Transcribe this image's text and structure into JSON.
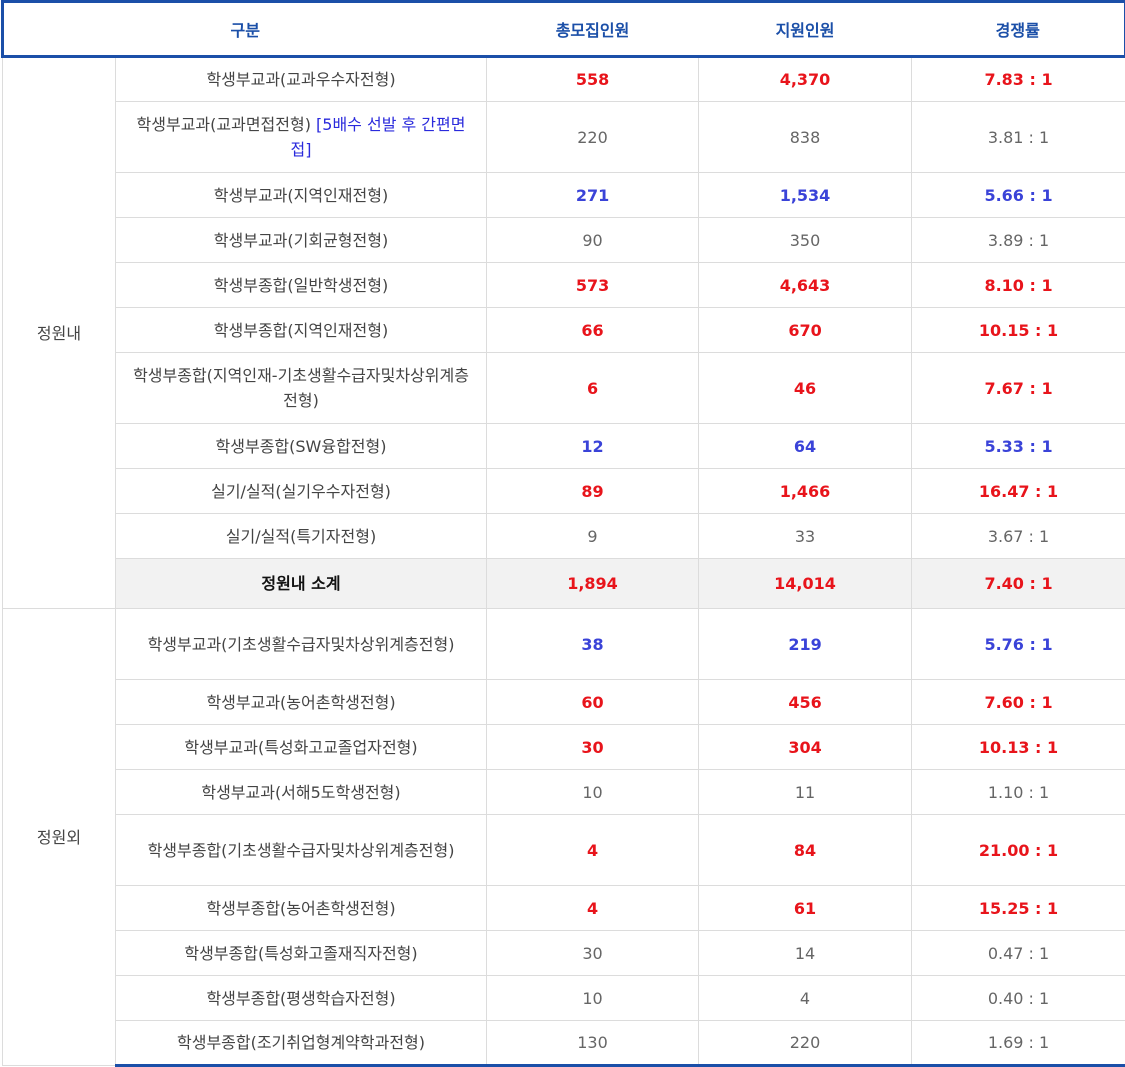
{
  "header": {
    "col1": "구분",
    "col2": "총모집인원",
    "col3": "지원인원",
    "col4": "경쟁률"
  },
  "groups": {
    "in": "정원내",
    "out": "정원외"
  },
  "colors": {
    "red": "#e8141b",
    "blue": "#3a43d8",
    "gray": "#666666",
    "header_blue": "#1b4fa8"
  },
  "rows": [
    {
      "name": "학생부교과(교과우수자전형)",
      "note": "",
      "recruit": "558",
      "applicants": "4,370",
      "ratio": "7.83 : 1",
      "style": "red"
    },
    {
      "name": "학생부교과(교과면접전형) ",
      "note": "[5배수 선발 후 간편면접]",
      "recruit": "220",
      "applicants": "838",
      "ratio": "3.81 : 1",
      "style": "gray"
    },
    {
      "name": "학생부교과(지역인재전형)",
      "note": "",
      "recruit": "271",
      "applicants": "1,534",
      "ratio": "5.66 : 1",
      "style": "blue"
    },
    {
      "name": "학생부교과(기회균형전형)",
      "note": "",
      "recruit": "90",
      "applicants": "350",
      "ratio": "3.89 : 1",
      "style": "gray"
    },
    {
      "name": "학생부종합(일반학생전형)",
      "note": "",
      "recruit": "573",
      "applicants": "4,643",
      "ratio": "8.10 : 1",
      "style": "red"
    },
    {
      "name": "학생부종합(지역인재전형)",
      "note": "",
      "recruit": "66",
      "applicants": "670",
      "ratio": "10.15 : 1",
      "style": "red"
    },
    {
      "name": "학생부종합(지역인재-기초생활수급자및차상위계층전형)",
      "note": "",
      "recruit": "6",
      "applicants": "46",
      "ratio": "7.67 : 1",
      "style": "red"
    },
    {
      "name": "학생부종합(SW융합전형)",
      "note": "",
      "recruit": "12",
      "applicants": "64",
      "ratio": "5.33 : 1",
      "style": "blue"
    },
    {
      "name": "실기/실적(실기우수자전형)",
      "note": "",
      "recruit": "89",
      "applicants": "1,466",
      "ratio": "16.47 : 1",
      "style": "red"
    },
    {
      "name": "실기/실적(특기자전형)",
      "note": "",
      "recruit": "9",
      "applicants": "33",
      "ratio": "3.67 : 1",
      "style": "gray"
    },
    {
      "name": "정원내 소계",
      "note": "",
      "recruit": "1,894",
      "applicants": "14,014",
      "ratio": "7.40 : 1",
      "style": "red"
    },
    {
      "name": "학생부교과(기초생활수급자및차상위계층전형)",
      "note": "",
      "recruit": "38",
      "applicants": "219",
      "ratio": "5.76 : 1",
      "style": "blue"
    },
    {
      "name": "학생부교과(농어촌학생전형)",
      "note": "",
      "recruit": "60",
      "applicants": "456",
      "ratio": "7.60 : 1",
      "style": "red"
    },
    {
      "name": "학생부교과(특성화고교졸업자전형)",
      "note": "",
      "recruit": "30",
      "applicants": "304",
      "ratio": "10.13 : 1",
      "style": "red"
    },
    {
      "name": "학생부교과(서해5도학생전형)",
      "note": "",
      "recruit": "10",
      "applicants": "11",
      "ratio": "1.10 : 1",
      "style": "gray"
    },
    {
      "name": "학생부종합(기초생활수급자및차상위계층전형)",
      "note": "",
      "recruit": "4",
      "applicants": "84",
      "ratio": "21.00 : 1",
      "style": "red"
    },
    {
      "name": "학생부종합(농어촌학생전형)",
      "note": "",
      "recruit": "4",
      "applicants": "61",
      "ratio": "15.25 : 1",
      "style": "red"
    },
    {
      "name": "학생부종합(특성화고졸재직자전형)",
      "note": "",
      "recruit": "30",
      "applicants": "14",
      "ratio": "0.47 : 1",
      "style": "gray"
    },
    {
      "name": "학생부종합(평생학습자전형)",
      "note": "",
      "recruit": "10",
      "applicants": "4",
      "ratio": "0.40 : 1",
      "style": "gray"
    },
    {
      "name": "학생부종합(조기취업형계약학과전형)",
      "note": "",
      "recruit": "130",
      "applicants": "220",
      "ratio": "1.69 : 1",
      "style": "gray"
    }
  ]
}
